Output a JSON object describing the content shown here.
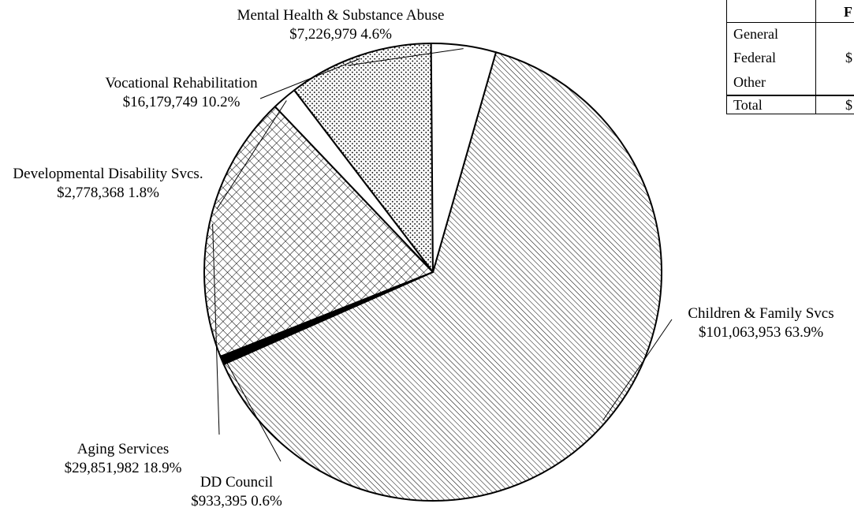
{
  "chart_data": {
    "type": "pie",
    "slices": [
      {
        "label": "Children & Family Svcs",
        "value": 101063953,
        "amount": "$101,063,953",
        "percent": "63.9%",
        "fill": "diag"
      },
      {
        "label": "DD Council",
        "value": 933395,
        "amount": "$933,395",
        "percent": "0.6%",
        "fill": "solid"
      },
      {
        "label": "Aging Services",
        "value": 29851982,
        "amount": "$29,851,982",
        "percent": "18.9%",
        "fill": "cross"
      },
      {
        "label": "Developmental Disability Svcs.",
        "value": 2778368,
        "amount": "$2,778,368",
        "percent": "1.8%",
        "fill": "none"
      },
      {
        "label": "Vocational Rehabilitation",
        "value": 16179749,
        "amount": "$16,179,749",
        "percent": "10.2%",
        "fill": "dots"
      },
      {
        "label": "Mental Health & Substance Abuse",
        "value": 7226979,
        "amount": "$7,226,979",
        "percent": "4.6%",
        "fill": "none"
      }
    ],
    "legend": "none",
    "labels": "outside-with-leader-lines"
  },
  "funds_table": {
    "header": "F",
    "rows": [
      {
        "label": "General",
        "value": ""
      },
      {
        "label": "Federal",
        "value": "$"
      },
      {
        "label": "Other",
        "value": ""
      }
    ],
    "total": {
      "label": "Total",
      "value": "$"
    }
  },
  "colors": {
    "ink": "#000000",
    "background": "#ffffff"
  }
}
